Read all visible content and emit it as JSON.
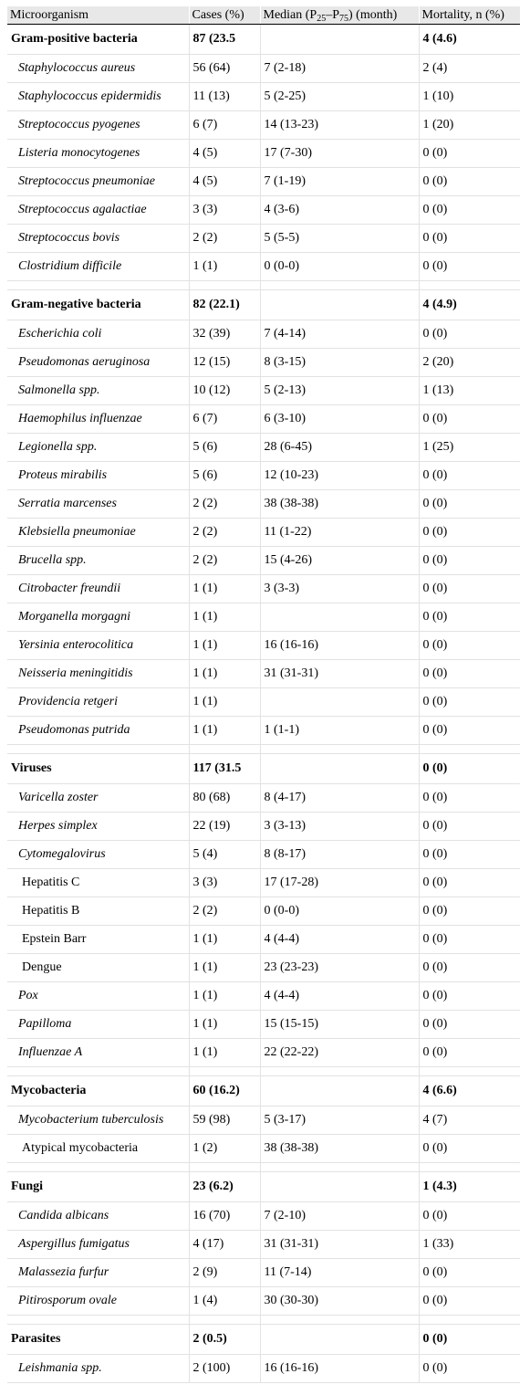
{
  "columns": [
    {
      "label": "Microorganism"
    },
    {
      "label": "Cases (%)"
    },
    {
      "label": "Median (P",
      "sub1": "25",
      "mid": "–P",
      "sub2": "75",
      "tail": ") (month)"
    },
    {
      "label": "Mortality, n (%)"
    }
  ],
  "groups": [
    {
      "name": "Gram-positive bacteria",
      "cases": "87 (23.5",
      "median": "",
      "mortality": "4 (4.6)",
      "rows": [
        {
          "name": "Staphylococcus aureus",
          "cases": "56 (64)",
          "median": "7 (2-18)",
          "mortality": "2 (4)",
          "italic": true
        },
        {
          "name": "Staphylococcus epidermidis",
          "cases": "11 (13)",
          "median": "5 (2-25)",
          "mortality": "1 (10)",
          "italic": true
        },
        {
          "name": "Streptococcus pyogenes",
          "cases": "6 (7)",
          "median": "14 (13-23)",
          "mortality": "1 (20)",
          "italic": true
        },
        {
          "name": "Listeria monocytogenes",
          "cases": "4 (5)",
          "median": "17 (7-30)",
          "mortality": "0 (0)",
          "italic": true
        },
        {
          "name": "Streptococcus pneumoniae",
          "cases": "4 (5)",
          "median": "7 (1-19)",
          "mortality": "0 (0)",
          "italic": true
        },
        {
          "name": "Streptococcus agalactiae",
          "cases": "3 (3)",
          "median": "4 (3-6)",
          "mortality": "0 (0)",
          "italic": true
        },
        {
          "name": "Streptococcus bovis",
          "cases": "2 (2)",
          "median": "5 (5-5)",
          "mortality": "0 (0)",
          "italic": true
        },
        {
          "name": "Clostridium difficile",
          "cases": "1 (1)",
          "median": "0 (0-0)",
          "mortality": "0 (0)",
          "italic": true
        }
      ]
    },
    {
      "name": "Gram-negative bacteria",
      "cases": "82 (22.1)",
      "median": "",
      "mortality": "4 (4.9)",
      "rows": [
        {
          "name": "Escherichia coli",
          "cases": "32 (39)",
          "median": "7 (4-14)",
          "mortality": "0 (0)",
          "italic": true
        },
        {
          "name": "Pseudomonas aeruginosa",
          "cases": "12 (15)",
          "median": "8 (3-15)",
          "mortality": "2 (20)",
          "italic": true
        },
        {
          "name": "Salmonella spp.",
          "cases": "10 (12)",
          "median": "5 (2-13)",
          "mortality": "1 (13)",
          "italic": true
        },
        {
          "name": "Haemophilus influenzae",
          "cases": "6 (7)",
          "median": "6 (3-10)",
          "mortality": "0 (0)",
          "italic": true
        },
        {
          "name": "Legionella spp.",
          "cases": "5 (6)",
          "median": "28 (6-45)",
          "mortality": "1 (25)",
          "italic": true
        },
        {
          "name": "Proteus mirabilis",
          "cases": "5 (6)",
          "median": "12 (10-23)",
          "mortality": "0 (0)",
          "italic": true
        },
        {
          "name": "Serratia marcenses",
          "cases": "2 (2)",
          "median": "38 (38-38)",
          "mortality": "0 (0)",
          "italic": true
        },
        {
          "name": "Klebsiella pneumoniae",
          "cases": "2 (2)",
          "median": "11 (1-22)",
          "mortality": "0 (0)",
          "italic": true
        },
        {
          "name": "Brucella spp.",
          "cases": "2 (2)",
          "median": "15 (4-26)",
          "mortality": "0 (0)",
          "italic": true
        },
        {
          "name": "Citrobacter freundii",
          "cases": "1 (1)",
          "median": "3 (3-3)",
          "mortality": "0 (0)",
          "italic": true
        },
        {
          "name": "Morganella morgagni",
          "cases": "1 (1)",
          "median": "",
          "mortality": "0 (0)",
          "italic": true
        },
        {
          "name": "Yersinia enterocolitica",
          "cases": "1 (1)",
          "median": "16 (16-16)",
          "mortality": "0 (0)",
          "italic": true
        },
        {
          "name": "Neisseria meningitidis",
          "cases": "1 (1)",
          "median": "31 (31-31)",
          "mortality": "0 (0)",
          "italic": true
        },
        {
          "name": "Providencia retgeri",
          "cases": "1 (1)",
          "median": "",
          "mortality": "0 (0)",
          "italic": true
        },
        {
          "name": "Pseudomonas putrida",
          "cases": "1 (1)",
          "median": "1 (1-1)",
          "mortality": "0 (0)",
          "italic": true
        }
      ]
    },
    {
      "name": "Viruses",
      "cases": "117 (31.5",
      "median": "",
      "mortality": "0 (0)",
      "rows": [
        {
          "name": "Varicella zoster",
          "cases": "80 (68)",
          "median": "8 (4-17)",
          "mortality": "0 (0)",
          "italic": true
        },
        {
          "name": "Herpes simplex",
          "cases": "22 (19)",
          "median": "3 (3-13)",
          "mortality": "0 (0)",
          "italic": true
        },
        {
          "name": "Cytomegalovirus",
          "cases": "5 (4)",
          "median": "8 (8-17)",
          "mortality": "0 (0)",
          "italic": true
        },
        {
          "name": "Hepatitis C",
          "cases": "3 (3)",
          "median": "17 (17-28)",
          "mortality": "0 (0)",
          "italic": false
        },
        {
          "name": "Hepatitis B",
          "cases": "2 (2)",
          "median": "0 (0-0)",
          "mortality": "0 (0)",
          "italic": false
        },
        {
          "name": "Epstein Barr",
          "cases": "1 (1)",
          "median": "4 (4-4)",
          "mortality": "0 (0)",
          "italic": false
        },
        {
          "name": "Dengue",
          "cases": "1 (1)",
          "median": "23 (23-23)",
          "mortality": "0 (0)",
          "italic": false
        },
        {
          "name": "Pox",
          "cases": "1 (1)",
          "median": "4 (4-4)",
          "mortality": "0 (0)",
          "italic": true
        },
        {
          "name": "Papilloma",
          "cases": "1 (1)",
          "median": "15 (15-15)",
          "mortality": "0 (0)",
          "italic": true
        },
        {
          "name": "Influenzae A",
          "cases": "1 (1)",
          "median": "22 (22-22)",
          "mortality": "0 (0)",
          "italic": true
        }
      ]
    },
    {
      "name": "Mycobacteria",
      "cases": "60 (16.2)",
      "median": "",
      "mortality": "4 (6.6)",
      "rows": [
        {
          "name": "Mycobacterium tuberculosis",
          "cases": "59 (98)",
          "median": "5 (3-17)",
          "mortality": "4 (7)",
          "italic": true
        },
        {
          "name": "Atypical mycobacteria",
          "cases": "1 (2)",
          "median": "38 (38-38)",
          "mortality": "0 (0)",
          "italic": false
        }
      ]
    },
    {
      "name": "Fungi",
      "cases": "23 (6.2)",
      "median": "",
      "mortality": "1 (4.3)",
      "rows": [
        {
          "name": "Candida albicans",
          "cases": "16 (70)",
          "median": "7 (2-10)",
          "mortality": "0 (0)",
          "italic": true
        },
        {
          "name": "Aspergillus fumigatus",
          "cases": "4 (17)",
          "median": "31 (31-31)",
          "mortality": "1 (33)",
          "italic": true
        },
        {
          "name": "Malassezia furfur",
          "cases": "2 (9)",
          "median": "11 (7-14)",
          "mortality": "0 (0)",
          "italic": true
        },
        {
          "name": "Pitirosporum ovale",
          "cases": "1 (4)",
          "median": "30 (30-30)",
          "mortality": "0 (0)",
          "italic": true
        }
      ]
    },
    {
      "name": "Parasites",
      "cases": "2 (0.5)",
      "median": "",
      "mortality": "0 (0)",
      "rows": [
        {
          "name": "Leishmania spp.",
          "cases": "2 (100)",
          "median": "16 (16-16)",
          "mortality": "0 (0)",
          "italic": true
        }
      ]
    }
  ]
}
